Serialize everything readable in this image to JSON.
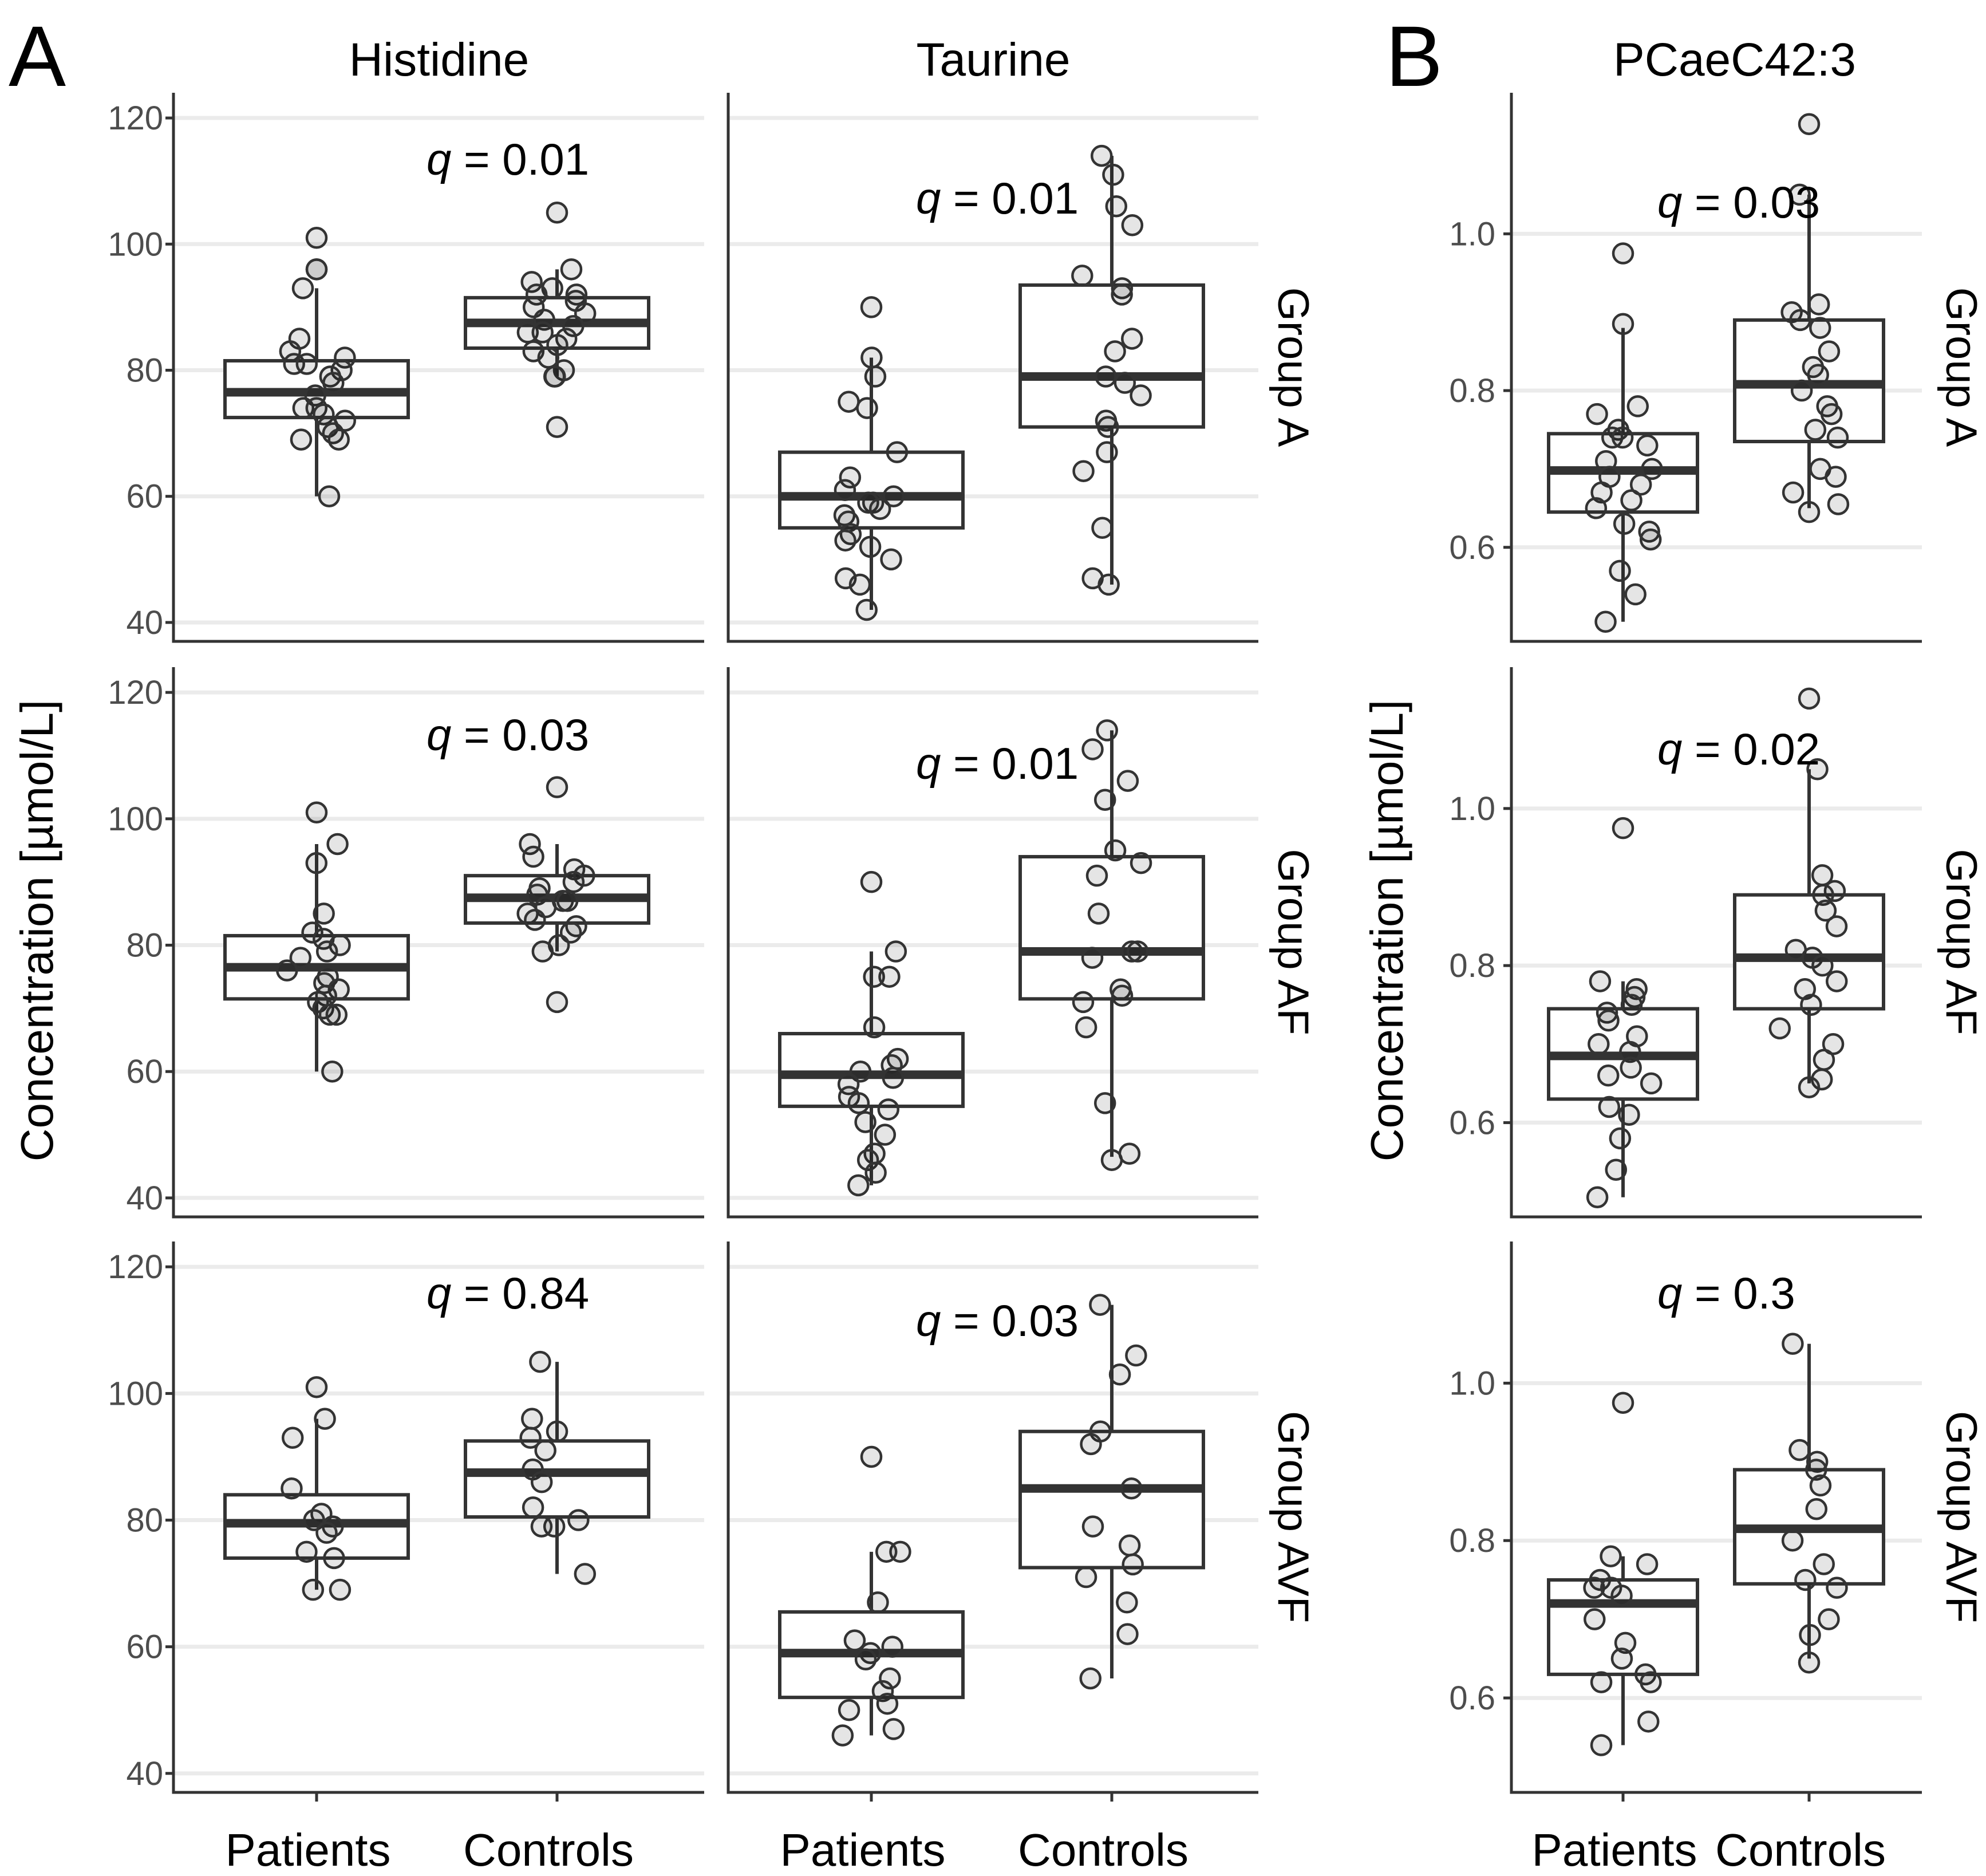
{
  "panel_labels": {
    "a": "A",
    "b": "B"
  },
  "y_axis_label": "Concentration  [µmol/L]",
  "columns": [
    {
      "title": "Histidine"
    },
    {
      "title": "Taurine"
    },
    {
      "title": "PCaeC42:3"
    }
  ],
  "rows": [
    {
      "label": "Group A"
    },
    {
      "label": "Group AF"
    },
    {
      "label": "Group AVF"
    }
  ],
  "x_categories": [
    "Patients",
    "Controls"
  ],
  "chart_data": [
    {
      "type": "box",
      "metabolite": "Histidine",
      "group": "Group A",
      "q_prefix": "q",
      "q_value": "= 0.01",
      "ylim": [
        37,
        124
      ],
      "yticks": [
        "40",
        "60",
        "80",
        "100",
        "120"
      ],
      "series": [
        {
          "name": "Patients",
          "q1": 72.5,
          "median": 76.5,
          "q3": 81.5,
          "whisker_low": 60,
          "whisker_high": 93,
          "points": [
            101,
            96,
            96,
            93,
            85,
            83,
            82,
            81,
            81,
            80,
            79,
            78,
            76,
            74,
            74,
            73,
            72,
            71,
            70,
            69,
            69,
            60
          ]
        },
        {
          "name": "Controls",
          "q1": 83.5,
          "median": 87.5,
          "q3": 91.5,
          "whisker_low": 79,
          "whisker_high": 96,
          "points": [
            105,
            96,
            94,
            93,
            92,
            92,
            91,
            90,
            89,
            88,
            87,
            86,
            86,
            85,
            84,
            83,
            82,
            80,
            79,
            79,
            71
          ]
        }
      ]
    },
    {
      "type": "box",
      "metabolite": "Taurine",
      "group": "Group A",
      "q_prefix": "q",
      "q_value": "= 0.01",
      "ylim": [
        37,
        124
      ],
      "yticks": [
        "40",
        "60",
        "80",
        "100",
        "120"
      ],
      "series": [
        {
          "name": "Patients",
          "q1": 55,
          "median": 60,
          "q3": 67,
          "whisker_low": 42,
          "whisker_high": 82,
          "points": [
            90,
            82,
            79,
            75,
            74,
            67,
            63,
            61,
            60,
            59,
            59,
            58,
            57,
            56,
            54,
            53,
            52,
            50,
            47,
            46,
            42
          ]
        },
        {
          "name": "Controls",
          "q1": 71,
          "median": 79,
          "q3": 93.5,
          "whisker_low": 46,
          "whisker_high": 114,
          "points": [
            114,
            111,
            106,
            103,
            95,
            93,
            92,
            85,
            83,
            79,
            78,
            76,
            72,
            71,
            67,
            64,
            55,
            47,
            46
          ]
        }
      ]
    },
    {
      "type": "box",
      "metabolite": "PCaeC42:3",
      "group": "Group A",
      "q_prefix": "q",
      "q_value": "= 0.03",
      "ylim": [
        0.48,
        1.18
      ],
      "yticks": [
        "0.6",
        "0.8",
        "1.0"
      ],
      "series": [
        {
          "name": "Patients",
          "q1": 0.645,
          "median": 0.698,
          "q3": 0.745,
          "whisker_low": 0.505,
          "whisker_high": 0.88,
          "points": [
            0.975,
            0.885,
            0.78,
            0.77,
            0.75,
            0.74,
            0.74,
            0.73,
            0.71,
            0.7,
            0.69,
            0.68,
            0.67,
            0.66,
            0.65,
            0.63,
            0.62,
            0.61,
            0.57,
            0.54,
            0.505
          ]
        },
        {
          "name": "Controls",
          "q1": 0.735,
          "median": 0.808,
          "q3": 0.89,
          "whisker_low": 0.65,
          "whisker_high": 1.05,
          "points": [
            1.14,
            1.05,
            0.91,
            0.9,
            0.89,
            0.88,
            0.85,
            0.83,
            0.82,
            0.8,
            0.78,
            0.77,
            0.75,
            0.74,
            0.7,
            0.69,
            0.67,
            0.655,
            0.645
          ]
        }
      ]
    },
    {
      "type": "box",
      "metabolite": "Histidine",
      "group": "Group AF",
      "q_prefix": "q",
      "q_value": "= 0.03",
      "ylim": [
        37,
        124
      ],
      "yticks": [
        "40",
        "60",
        "80",
        "100",
        "120"
      ],
      "series": [
        {
          "name": "Patients",
          "q1": 71.5,
          "median": 76.5,
          "q3": 81.5,
          "whisker_low": 60,
          "whisker_high": 96,
          "points": [
            101,
            96,
            93,
            85,
            82,
            81,
            80,
            79,
            78,
            76,
            75,
            74,
            73,
            72,
            71,
            70,
            69,
            69,
            60
          ]
        },
        {
          "name": "Controls",
          "q1": 83.5,
          "median": 87.5,
          "q3": 91,
          "whisker_low": 79,
          "whisker_high": 96,
          "points": [
            105,
            96,
            94,
            92,
            91,
            90,
            89,
            88,
            87,
            87,
            86,
            85,
            84,
            83,
            82,
            80,
            79,
            71
          ]
        }
      ]
    },
    {
      "type": "box",
      "metabolite": "Taurine",
      "group": "Group AF",
      "q_prefix": "q",
      "q_value": "= 0.01",
      "ylim": [
        37,
        124
      ],
      "yticks": [
        "40",
        "60",
        "80",
        "100",
        "120"
      ],
      "series": [
        {
          "name": "Patients",
          "q1": 54.5,
          "median": 59.5,
          "q3": 66,
          "whisker_low": 42,
          "whisker_high": 79,
          "points": [
            90,
            79,
            75,
            75,
            67,
            62,
            61,
            60,
            59,
            58,
            56,
            55,
            54,
            52,
            50,
            47,
            46,
            44,
            42
          ]
        },
        {
          "name": "Controls",
          "q1": 71.5,
          "median": 79,
          "q3": 94,
          "whisker_low": 46.5,
          "whisker_high": 114,
          "points": [
            114,
            111,
            106,
            103,
            95,
            93,
            91,
            85,
            79,
            79,
            78,
            73,
            72,
            71,
            67,
            55,
            47,
            46
          ]
        }
      ]
    },
    {
      "type": "box",
      "metabolite": "PCaeC42:3",
      "group": "Group AF",
      "q_prefix": "q",
      "q_value": "= 0.02",
      "ylim": [
        0.48,
        1.18
      ],
      "yticks": [
        "0.6",
        "0.8",
        "1.0"
      ],
      "series": [
        {
          "name": "Patients",
          "q1": 0.63,
          "median": 0.685,
          "q3": 0.745,
          "whisker_low": 0.505,
          "whisker_high": 0.78,
          "points": [
            0.975,
            0.78,
            0.77,
            0.76,
            0.75,
            0.74,
            0.73,
            0.71,
            0.7,
            0.69,
            0.67,
            0.66,
            0.65,
            0.62,
            0.61,
            0.58,
            0.54,
            0.505
          ]
        },
        {
          "name": "Controls",
          "q1": 0.745,
          "median": 0.81,
          "q3": 0.89,
          "whisker_low": 0.65,
          "whisker_high": 1.05,
          "points": [
            1.14,
            1.05,
            0.915,
            0.895,
            0.89,
            0.87,
            0.85,
            0.82,
            0.81,
            0.8,
            0.78,
            0.77,
            0.75,
            0.72,
            0.7,
            0.68,
            0.655,
            0.645
          ]
        }
      ]
    },
    {
      "type": "box",
      "metabolite": "Histidine",
      "group": "Group AVF",
      "q_prefix": "q",
      "q_value": "= 0.84",
      "ylim": [
        37,
        124
      ],
      "yticks": [
        "40",
        "60",
        "80",
        "100",
        "120"
      ],
      "series": [
        {
          "name": "Patients",
          "q1": 74,
          "median": 79.5,
          "q3": 84,
          "whisker_low": 69,
          "whisker_high": 96,
          "points": [
            101,
            96,
            93,
            85,
            81,
            80,
            79,
            78,
            75,
            74,
            69,
            69
          ]
        },
        {
          "name": "Controls",
          "q1": 80.5,
          "median": 87.5,
          "q3": 92.5,
          "whisker_low": 71.5,
          "whisker_high": 105,
          "points": [
            105,
            96,
            94,
            93,
            91,
            88,
            86,
            82,
            80,
            79,
            79,
            71.5
          ]
        }
      ]
    },
    {
      "type": "box",
      "metabolite": "Taurine",
      "group": "Group AVF",
      "q_prefix": "q",
      "q_value": "= 0.03",
      "ylim": [
        37,
        124
      ],
      "yticks": [
        "40",
        "60",
        "80",
        "100",
        "120"
      ],
      "series": [
        {
          "name": "Patients",
          "q1": 52,
          "median": 59,
          "q3": 65.5,
          "whisker_low": 46,
          "whisker_high": 75,
          "points": [
            90,
            75,
            75,
            67,
            61,
            60,
            59,
            58,
            55,
            53,
            51,
            50,
            47,
            46
          ]
        },
        {
          "name": "Controls",
          "q1": 72.5,
          "median": 85,
          "q3": 94,
          "whisker_low": 55,
          "whisker_high": 114,
          "points": [
            114,
            106,
            103,
            94,
            92,
            85,
            79,
            76,
            73,
            71,
            67,
            62,
            55
          ]
        }
      ]
    },
    {
      "type": "box",
      "metabolite": "PCaeC42:3",
      "group": "Group AVF",
      "q_prefix": "q",
      "q_value": "= 0.3",
      "ylim": [
        0.48,
        1.18
      ],
      "yticks": [
        "0.6",
        "0.8",
        "1.0"
      ],
      "series": [
        {
          "name": "Patients",
          "q1": 0.63,
          "median": 0.72,
          "q3": 0.75,
          "whisker_low": 0.54,
          "whisker_high": 0.78,
          "points": [
            0.975,
            0.78,
            0.77,
            0.75,
            0.74,
            0.74,
            0.73,
            0.7,
            0.67,
            0.65,
            0.63,
            0.62,
            0.62,
            0.57,
            0.54
          ]
        },
        {
          "name": "Controls",
          "q1": 0.745,
          "median": 0.815,
          "q3": 0.89,
          "whisker_low": 0.65,
          "whisker_high": 1.05,
          "points": [
            1.05,
            0.915,
            0.9,
            0.89,
            0.87,
            0.84,
            0.8,
            0.77,
            0.75,
            0.74,
            0.7,
            0.68,
            0.645
          ]
        }
      ]
    }
  ]
}
